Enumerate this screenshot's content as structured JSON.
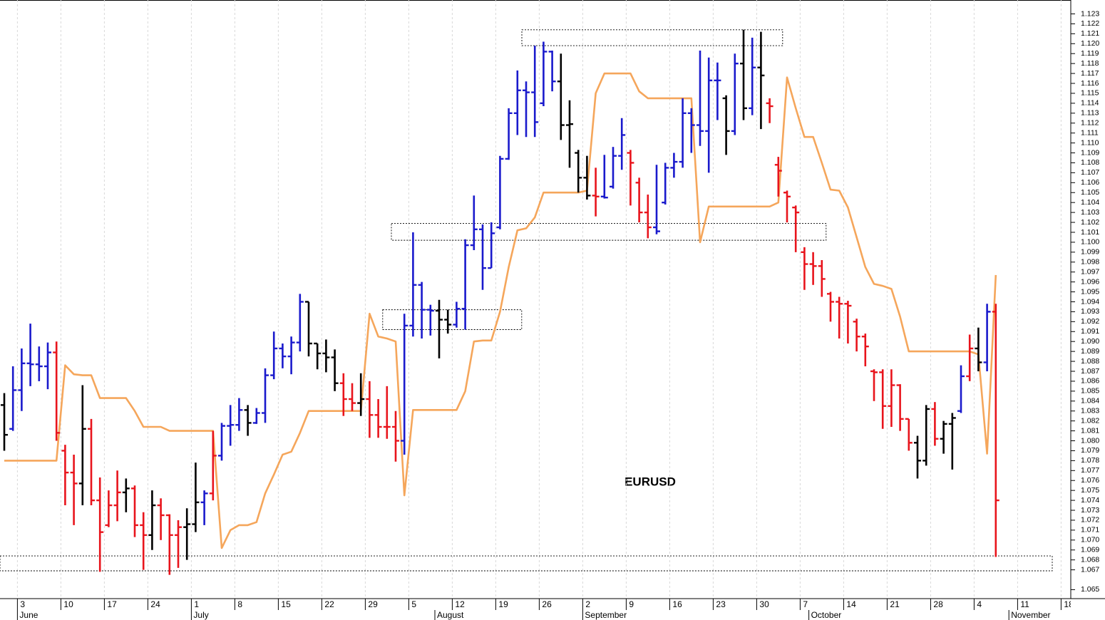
{
  "chart_data": {
    "type": "ohlc",
    "title": "EURUSD",
    "categories": [
      null,
      null,
      "3",
      null,
      null,
      null,
      null,
      "10",
      null,
      null,
      null,
      null,
      "17",
      null,
      null,
      null,
      null,
      "24",
      null,
      null,
      null,
      null,
      "1",
      null,
      null,
      null,
      null,
      "8",
      null,
      null,
      null,
      null,
      "15",
      null,
      null,
      null,
      null,
      "22",
      null,
      null,
      null,
      null,
      "29",
      null,
      null,
      null,
      null,
      "5",
      null,
      null,
      null,
      null,
      "12",
      null,
      null,
      null,
      null,
      "19",
      null,
      null,
      null,
      null,
      "26",
      null,
      null,
      null,
      null,
      "2",
      null,
      null,
      null,
      null,
      "9",
      null,
      null,
      null,
      null,
      "16",
      null,
      null,
      null,
      null,
      "23",
      null,
      null,
      null,
      null,
      "30",
      null,
      null,
      null,
      null,
      "7",
      null,
      null,
      null,
      null,
      "14",
      null,
      null,
      null,
      null,
      "21",
      null,
      null,
      null,
      null,
      "28",
      null,
      null,
      null,
      null,
      "4",
      null,
      null,
      null,
      null,
      "11",
      null,
      null,
      null,
      null,
      "18"
    ],
    "months": [
      null,
      null,
      "June",
      null,
      null,
      null,
      null,
      null,
      null,
      null,
      null,
      null,
      null,
      null,
      null,
      null,
      null,
      null,
      null,
      null,
      null,
      null,
      "July",
      null,
      null,
      null,
      null,
      null,
      null,
      null,
      null,
      null,
      null,
      null,
      null,
      null,
      null,
      null,
      null,
      null,
      null,
      null,
      null,
      null,
      null,
      null,
      null,
      null,
      null,
      null,
      "August",
      null,
      null,
      null,
      null,
      null,
      null,
      null,
      null,
      null,
      null,
      null,
      null,
      null,
      null,
      null,
      null,
      "September",
      null,
      null,
      null,
      null,
      null,
      null,
      null,
      null,
      null,
      null,
      null,
      null,
      null,
      null,
      null,
      null,
      null,
      null,
      null,
      null,
      null,
      null,
      null,
      null,
      null,
      "October",
      null,
      null,
      null,
      null,
      null,
      null,
      null,
      null,
      null,
      null,
      null,
      null,
      null,
      null,
      null,
      null,
      null,
      null,
      null,
      null,
      null,
      null,
      "November",
      null,
      null,
      null,
      null,
      null,
      null
    ],
    "open": [
      1.0836,
      1.0812,
      1.0851,
      1.0878,
      1.0877,
      1.0875,
      1.0889,
      1.079,
      1.0768,
      1.0757,
      1.0812,
      1.074,
      1.0715,
      1.0735,
      1.0748,
      1.0752,
      1.0715,
      1.0705,
      1.0735,
      1.0725,
      1.0705,
      1.0713,
      1.0716,
      1.0738,
      1.0747,
      1.0785,
      1.0815,
      1.0816,
      1.0831,
      1.0818,
      1.0828,
      1.0866,
      1.0893,
      1.0885,
      1.0899,
      1.094,
      1.0898,
      1.0888,
      1.0884,
      1.0858,
      1.0842,
      1.0838,
      1.0842,
      1.0826,
      1.0814,
      1.0814,
      1.08,
      1.0916,
      1.0957,
      1.0932,
      1.0931,
      1.0922,
      1.0917,
      1.0933,
      1.0997,
      1.1013,
      1.0974,
      1.1015,
      1.1084,
      1.113,
      1.1153,
      1.1151,
      1.114,
      1.1192,
      1.1162,
      1.1118,
      1.109,
      1.1065,
      1.1047,
      1.1046,
      1.1056,
      1.1087,
      1.109,
      1.106,
      1.103,
      1.1015,
      1.104,
      1.1075,
      1.1081,
      1.113,
      1.1118,
      1.1112,
      1.1163,
      1.1145,
      1.1112,
      1.118,
      1.1135,
      1.1176,
      1.114,
      1.1078,
      1.105,
      1.1035,
      1.099,
      1.0978,
      1.0976,
      1.0948,
      1.094,
      1.0938,
      1.092,
      1.0905,
      1.087,
      1.0869,
      1.0835,
      1.0856,
      1.0822,
      1.0798,
      1.078,
      1.0832,
      1.0802,
      1.0817,
      1.083,
      1.0865,
      1.0893,
      1.0879,
      1.093,
      null,
      null,
      null,
      null,
      null,
      null,
      null,
      null
    ],
    "high": [
      1.0848,
      1.0875,
      1.0893,
      1.0918,
      1.0895,
      1.0899,
      1.09,
      1.0796,
      1.0786,
      1.0856,
      1.0822,
      1.0763,
      1.075,
      1.077,
      1.0762,
      1.0755,
      1.0728,
      1.075,
      1.0742,
      1.0726,
      1.072,
      1.0732,
      1.0778,
      1.075,
      1.081,
      1.0818,
      1.0836,
      1.0843,
      1.0836,
      1.0833,
      1.0873,
      1.091,
      1.0898,
      1.0905,
      1.0948,
      1.094,
      1.0898,
      1.0902,
      1.0892,
      1.0868,
      1.0858,
      1.0868,
      1.086,
      1.0842,
      1.0855,
      1.083,
      1.0928,
      1.101,
      1.096,
      1.0937,
      1.0942,
      1.0932,
      1.094,
      1.1003,
      1.1047,
      1.1018,
      1.102,
      1.1087,
      1.1135,
      1.1173,
      1.1162,
      1.1198,
      1.1202,
      1.1193,
      1.119,
      1.1143,
      1.1093,
      1.1087,
      1.1075,
      1.1088,
      1.1096,
      1.1125,
      1.1093,
      1.1065,
      1.1048,
      1.1078,
      1.108,
      1.109,
      1.1145,
      1.1135,
      1.1193,
      1.1186,
      1.1181,
      1.1148,
      1.119,
      1.1214,
      1.1206,
      1.1212,
      1.1145,
      1.1086,
      1.1052,
      1.1037,
      1.0995,
      1.099,
      1.0982,
      1.095,
      1.0945,
      1.0941,
      1.0923,
      1.0908,
      1.0872,
      1.0872,
      1.0872,
      1.0857,
      1.0822,
      1.0805,
      1.0836,
      1.0839,
      1.082,
      1.0828,
      1.0876,
      1.0907,
      1.0914,
      1.0938,
      1.0938,
      null,
      null,
      null,
      null,
      null,
      null,
      null,
      null
    ],
    "low": [
      1.079,
      1.081,
      1.083,
      1.0855,
      1.086,
      1.0852,
      1.08,
      1.0735,
      1.0715,
      1.0735,
      1.0735,
      1.0668,
      1.0713,
      1.0719,
      1.0728,
      1.0703,
      1.067,
      1.069,
      1.07,
      1.0665,
      1.0672,
      1.068,
      1.0708,
      1.0715,
      1.074,
      1.078,
      1.0795,
      1.081,
      1.0805,
      1.0817,
      1.0818,
      1.0862,
      1.0873,
      1.0867,
      1.089,
      1.0885,
      1.0872,
      1.0869,
      1.085,
      1.0825,
      1.083,
      1.0825,
      1.0803,
      1.0803,
      1.0802,
      1.0779,
      1.0786,
      1.0905,
      1.0903,
      1.0906,
      1.0883,
      1.0908,
      1.0914,
      1.0912,
      1.0992,
      1.0952,
      1.0974,
      1.1013,
      1.1083,
      1.1108,
      1.1106,
      1.1106,
      1.1137,
      1.1152,
      1.1103,
      1.1075,
      1.105,
      1.1043,
      1.1026,
      1.1044,
      1.1054,
      1.1073,
      1.1037,
      1.102,
      1.1004,
      1.1008,
      1.1038,
      1.1065,
      1.1075,
      1.109,
      1.1097,
      1.107,
      1.1123,
      1.1088,
      1.1108,
      1.1123,
      1.1128,
      1.1114,
      1.112,
      1.1046,
      1.102,
      1.099,
      1.0952,
      1.0957,
      1.0945,
      1.092,
      1.0903,
      1.0898,
      1.089,
      1.0875,
      1.084,
      1.0812,
      1.0814,
      1.081,
      1.079,
      1.0762,
      1.0775,
      1.0795,
      1.0787,
      1.0771,
      1.0828,
      1.086,
      1.087,
      1.087,
      1.0683,
      null,
      null,
      null,
      null,
      null,
      null,
      null,
      null
    ],
    "close": [
      1.0806,
      1.0851,
      1.0878,
      1.0877,
      1.0875,
      1.0889,
      1.0808,
      1.0768,
      1.0757,
      1.0812,
      1.074,
      1.0708,
      1.0735,
      1.0748,
      1.0752,
      1.0715,
      1.0705,
      1.0735,
      1.0725,
      1.0705,
      1.0713,
      1.0716,
      1.0738,
      1.0747,
      1.0785,
      1.0815,
      1.0816,
      1.0831,
      1.0818,
      1.0828,
      1.0866,
      1.0893,
      1.0885,
      1.0899,
      1.094,
      1.0898,
      1.0888,
      1.0884,
      1.0858,
      1.0842,
      1.0838,
      1.0842,
      1.0826,
      1.0814,
      1.0814,
      1.08,
      1.0916,
      1.0957,
      1.0932,
      1.0931,
      1.0922,
      1.0917,
      1.0933,
      1.0997,
      1.1013,
      1.0974,
      1.1009,
      1.1084,
      1.113,
      1.1153,
      1.1151,
      1.1121,
      1.1192,
      1.1162,
      1.1118,
      1.1119,
      1.1065,
      1.1047,
      1.1046,
      1.1045,
      1.1087,
      1.1108,
      1.108,
      1.103,
      1.1015,
      1.1011,
      1.1075,
      1.1081,
      1.113,
      1.1118,
      1.1112,
      1.1163,
      1.1163,
      1.1112,
      1.118,
      1.1135,
      1.1176,
      1.1168,
      1.1137,
      1.1072,
      1.1046,
      1.103,
      1.0978,
      1.0976,
      1.0963,
      1.094,
      1.0938,
      1.0936,
      1.0905,
      1.0895,
      1.0869,
      1.0835,
      1.0856,
      1.0822,
      1.0798,
      1.078,
      1.0832,
      1.0802,
      1.0817,
      1.0823,
      1.0865,
      1.0893,
      1.0879,
      1.093,
      1.074,
      null,
      null,
      null,
      null,
      null,
      null,
      null,
      null
    ],
    "bar_colors": [
      "#000000",
      "#1a1acc",
      "#1a1acc",
      "#1a1acc",
      "#1a1acc",
      "#1a1acc",
      "#e8141c",
      "#e8141c",
      "#e8141c",
      "#000000",
      "#e8141c",
      "#e8141c",
      "#e8141c",
      "#e8141c",
      "#000000",
      "#e8141c",
      "#e8141c",
      "#000000",
      "#e8141c",
      "#e8141c",
      "#e8141c",
      "#000000",
      "#000000",
      "#1a1acc",
      "#e8141c",
      "#1a1acc",
      "#1a1acc",
      "#1a1acc",
      "#000000",
      "#1a1acc",
      "#1a1acc",
      "#1a1acc",
      "#1a1acc",
      "#1a1acc",
      "#1a1acc",
      "#000000",
      "#000000",
      "#000000",
      "#000000",
      "#e8141c",
      "#e8141c",
      "#000000",
      "#e8141c",
      "#e8141c",
      "#e8141c",
      "#e8141c",
      "#1a1acc",
      "#1a1acc",
      "#1a1acc",
      "#1a1acc",
      "#000000",
      "#000000",
      "#1a1acc",
      "#1a1acc",
      "#1a1acc",
      "#1a1acc",
      "#1a1acc",
      "#1a1acc",
      "#1a1acc",
      "#1a1acc",
      "#1a1acc",
      "#1a1acc",
      "#1a1acc",
      "#1a1acc",
      "#000000",
      "#000000",
      "#000000",
      "#000000",
      "#e8141c",
      "#1a1acc",
      "#1a1acc",
      "#1a1acc",
      "#e8141c",
      "#e8141c",
      "#e8141c",
      "#1a1acc",
      "#1a1acc",
      "#1a1acc",
      "#1a1acc",
      "#1a1acc",
      "#1a1acc",
      "#1a1acc",
      "#1a1acc",
      "#000000",
      "#1a1acc",
      "#000000",
      "#1a1acc",
      "#000000",
      "#e8141c",
      "#e8141c",
      "#e8141c",
      "#e8141c",
      "#e8141c",
      "#e8141c",
      "#e8141c",
      "#e8141c",
      "#e8141c",
      "#e8141c",
      "#e8141c",
      "#e8141c",
      "#e8141c",
      "#e8141c",
      "#e8141c",
      "#e8141c",
      "#e8141c",
      "#000000",
      "#000000",
      "#e8141c",
      "#000000",
      "#000000",
      "#1a1acc",
      "#e8141c",
      "#000000",
      "#1a1acc",
      "#e8141c",
      null,
      null,
      null,
      null,
      null,
      null,
      null,
      null
    ],
    "line_color": "#f5a65b",
    "line_values": [
      1.078,
      1.078,
      1.078,
      1.078,
      1.078,
      1.078,
      1.078,
      1.0876,
      1.0867,
      1.0866,
      1.0866,
      1.0843,
      1.0843,
      1.0843,
      1.0843,
      1.083,
      1.0814,
      1.0814,
      1.0814,
      1.081,
      1.081,
      1.081,
      1.081,
      1.081,
      1.081,
      1.0692,
      1.071,
      1.0715,
      1.0715,
      1.0718,
      1.0747,
      1.0766,
      1.0786,
      1.0789,
      1.0808,
      1.083,
      1.083,
      1.083,
      1.083,
      1.083,
      1.083,
      1.083,
      1.0928,
      1.0905,
      1.0903,
      1.09,
      1.0745,
      1.0831,
      1.0831,
      1.0831,
      1.0831,
      1.0831,
      1.0831,
      1.085,
      1.09,
      1.0901,
      1.0901,
      1.093,
      1.0975,
      1.1012,
      1.1014,
      1.1025,
      1.105,
      1.105,
      1.105,
      1.105,
      1.105,
      1.1052,
      1.115,
      1.117,
      1.117,
      1.117,
      1.117,
      1.1152,
      1.1145,
      1.1145,
      1.1145,
      1.1145,
      1.1145,
      1.1145,
      1.1,
      1.1036,
      1.1036,
      1.1036,
      1.1036,
      1.1036,
      1.1036,
      1.1036,
      1.1036,
      1.104,
      1.1166,
      1.1135,
      1.1106,
      1.1106,
      1.108,
      1.1053,
      1.1052,
      1.1035,
      1.1005,
      1.0975,
      1.0958,
      1.0956,
      1.0953,
      1.0925,
      1.089,
      1.089,
      1.089,
      1.089,
      1.089,
      1.089,
      1.089,
      1.089,
      1.0887,
      1.0787,
      1.0967,
      null,
      null,
      null,
      null,
      null,
      null,
      null,
      null
    ],
    "zones": [
      {
        "from": 60,
        "to": 89,
        "low": 1.1198,
        "high": 1.1214
      },
      {
        "from": 45,
        "to": 94,
        "low": 1.1002,
        "high": 1.1019
      },
      {
        "from": 44,
        "to": 59,
        "low": 1.0912,
        "high": 1.0932
      },
      {
        "from": 0,
        "to": 120,
        "low": 1.0669,
        "high": 1.0684
      }
    ],
    "ylim": [
      1.0641,
      1.1244
    ],
    "yticks": [
      1.065,
      1.067,
      1.068,
      1.069,
      {
        "value": 1.07,
        "label": "1.070"
      },
      1.071,
      1.072,
      1.073,
      1.074,
      1.075,
      1.076,
      1.077,
      1.078,
      1.079,
      {
        "value": 1.08,
        "label": "1.080"
      },
      1.081,
      1.082,
      1.083,
      1.084,
      1.085,
      1.086,
      1.087,
      1.088,
      1.089,
      {
        "value": 1.09,
        "label": "1.090"
      },
      1.091,
      1.092,
      1.093,
      1.094,
      1.095,
      1.096,
      1.097,
      1.098,
      1.099,
      {
        "value": 1.1,
        "label": "1.100"
      },
      1.101,
      1.102,
      1.103,
      1.104,
      1.105,
      1.106,
      1.107,
      1.108,
      1.109,
      {
        "value": 1.11,
        "label": "1.110"
      },
      1.111,
      1.112,
      1.113,
      1.114,
      1.115,
      1.116,
      1.117,
      1.118,
      1.119,
      {
        "value": 1.12,
        "label": "1.120"
      },
      1.121,
      1.122,
      1.123
    ],
    "grid": true
  }
}
